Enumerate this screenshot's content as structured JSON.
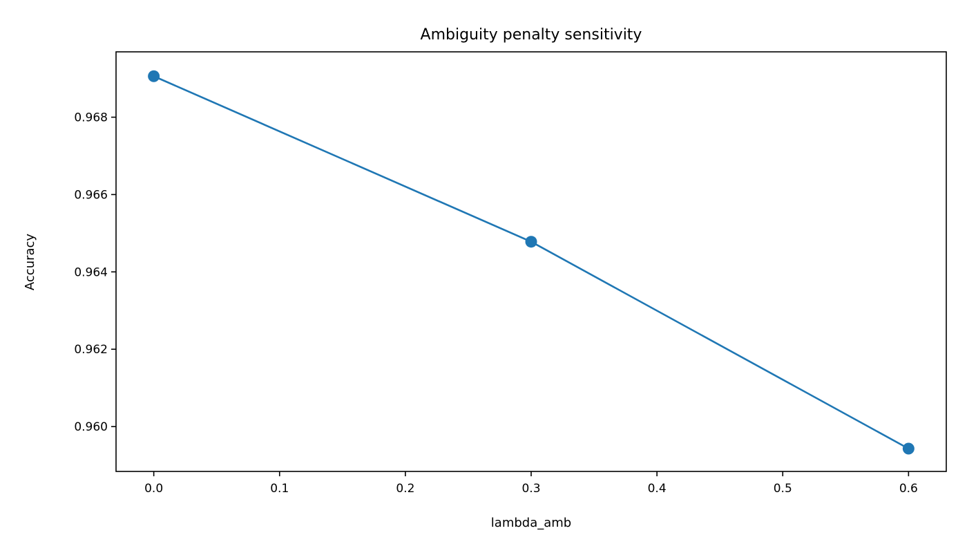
{
  "chart_data": {
    "type": "line",
    "title": "Ambiguity penalty sensitivity",
    "xlabel": "lambda_amb",
    "ylabel": "Accuracy",
    "xlim": [
      -0.03,
      0.63
    ],
    "ylim": [
      0.95884,
      0.96969
    ],
    "x_ticks": [
      0.0,
      0.1,
      0.2,
      0.3,
      0.4,
      0.5,
      0.6
    ],
    "x_tick_labels": [
      "0.0",
      "0.1",
      "0.2",
      "0.3",
      "0.4",
      "0.5",
      "0.6"
    ],
    "y_ticks": [
      0.96,
      0.962,
      0.964,
      0.966,
      0.968
    ],
    "y_tick_labels": [
      "0.960",
      "0.962",
      "0.964",
      "0.966",
      "0.968"
    ],
    "grid": false,
    "series": [
      {
        "color": "#1f77b4",
        "marker": "circle",
        "x": [
          0.0,
          0.3,
          0.6
        ],
        "y": [
          0.96906,
          0.96478,
          0.95943
        ]
      }
    ]
  }
}
